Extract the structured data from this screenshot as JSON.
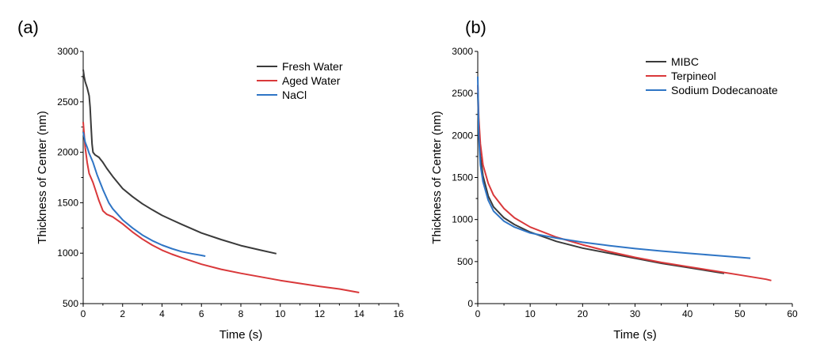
{
  "chart_data": [
    {
      "type": "line",
      "panel_label": "(a)",
      "xlabel": "Time (s)",
      "ylabel": "Thickness of Center (nm)",
      "xlim": [
        0,
        16
      ],
      "ylim": [
        500,
        3000
      ],
      "xticks": [
        0,
        2,
        4,
        6,
        8,
        10,
        12,
        14,
        16
      ],
      "yticks": [
        500,
        1000,
        1500,
        2000,
        2500,
        3000
      ],
      "grid": false,
      "legend_position": "top-right",
      "series": [
        {
          "name": "Fresh Water",
          "color": "#3a3a3a",
          "points": [
            [
              0,
              2820
            ],
            [
              0.05,
              2750
            ],
            [
              0.1,
              2700
            ],
            [
              0.2,
              2640
            ],
            [
              0.3,
              2560
            ],
            [
              0.35,
              2450
            ],
            [
              0.4,
              2250
            ],
            [
              0.45,
              2080
            ],
            [
              0.5,
              2000
            ],
            [
              0.6,
              1975
            ],
            [
              0.8,
              1950
            ],
            [
              1.0,
              1900
            ],
            [
              1.2,
              1840
            ],
            [
              1.5,
              1760
            ],
            [
              2,
              1640
            ],
            [
              2.5,
              1560
            ],
            [
              3,
              1490
            ],
            [
              3.5,
              1430
            ],
            [
              4,
              1375
            ],
            [
              4.5,
              1330
            ],
            [
              5,
              1285
            ],
            [
              6,
              1200
            ],
            [
              7,
              1135
            ],
            [
              8,
              1075
            ],
            [
              9,
              1030
            ],
            [
              9.8,
              995
            ]
          ]
        },
        {
          "name": "Aged Water",
          "color": "#d9383a",
          "points": [
            [
              0,
              2300
            ],
            [
              0.1,
              2050
            ],
            [
              0.2,
              1900
            ],
            [
              0.3,
              1790
            ],
            [
              0.5,
              1700
            ],
            [
              0.6,
              1640
            ],
            [
              0.8,
              1520
            ],
            [
              1.0,
              1420
            ],
            [
              1.2,
              1385
            ],
            [
              1.5,
              1360
            ],
            [
              2,
              1290
            ],
            [
              2.5,
              1210
            ],
            [
              3,
              1140
            ],
            [
              3.5,
              1080
            ],
            [
              4,
              1030
            ],
            [
              4.5,
              990
            ],
            [
              5,
              955
            ],
            [
              6,
              890
            ],
            [
              7,
              840
            ],
            [
              8,
              800
            ],
            [
              9,
              765
            ],
            [
              10,
              730
            ],
            [
              11,
              700
            ],
            [
              12,
              670
            ],
            [
              13,
              645
            ],
            [
              14,
              610
            ]
          ]
        },
        {
          "name": "NaCl",
          "color": "#2f75c5",
          "points": [
            [
              0,
              2200
            ],
            [
              0.1,
              2100
            ],
            [
              0.2,
              2050
            ],
            [
              0.3,
              1990
            ],
            [
              0.5,
              1900
            ],
            [
              0.7,
              1780
            ],
            [
              1.0,
              1630
            ],
            [
              1.3,
              1500
            ],
            [
              1.5,
              1440
            ],
            [
              2,
              1330
            ],
            [
              2.5,
              1250
            ],
            [
              3,
              1180
            ],
            [
              3.5,
              1125
            ],
            [
              4,
              1080
            ],
            [
              4.5,
              1045
            ],
            [
              5,
              1015
            ],
            [
              5.5,
              995
            ],
            [
              6,
              978
            ],
            [
              6.2,
              970
            ]
          ]
        }
      ]
    },
    {
      "type": "line",
      "panel_label": "(b)",
      "xlabel": "Time (s)",
      "ylabel": "Thickness of Center (nm)",
      "xlim": [
        0,
        60
      ],
      "ylim": [
        0,
        3000
      ],
      "xticks": [
        0,
        10,
        20,
        30,
        40,
        50,
        60
      ],
      "yticks": [
        0,
        500,
        1000,
        1500,
        2000,
        2500,
        3000
      ],
      "grid": false,
      "legend_position": "top-right",
      "series": [
        {
          "name": "MIBC",
          "color": "#3a3a3a",
          "points": [
            [
              0,
              2500
            ],
            [
              0.2,
              2050
            ],
            [
              0.5,
              1750
            ],
            [
              1,
              1520
            ],
            [
              2,
              1280
            ],
            [
              3,
              1150
            ],
            [
              5,
              1020
            ],
            [
              7,
              940
            ],
            [
              10,
              850
            ],
            [
              15,
              740
            ],
            [
              20,
              660
            ],
            [
              25,
              600
            ],
            [
              30,
              540
            ],
            [
              35,
              480
            ],
            [
              40,
              430
            ],
            [
              45,
              380
            ],
            [
              47,
              360
            ]
          ]
        },
        {
          "name": "Terpineol",
          "color": "#d9383a",
          "points": [
            [
              0,
              2600
            ],
            [
              0.2,
              2200
            ],
            [
              0.5,
              1900
            ],
            [
              1,
              1650
            ],
            [
              2,
              1430
            ],
            [
              3,
              1290
            ],
            [
              5,
              1130
            ],
            [
              7,
              1020
            ],
            [
              10,
              910
            ],
            [
              15,
              790
            ],
            [
              20,
              700
            ],
            [
              25,
              620
            ],
            [
              30,
              550
            ],
            [
              35,
              490
            ],
            [
              40,
              440
            ],
            [
              45,
              390
            ],
            [
              50,
              340
            ],
            [
              55,
              290
            ],
            [
              56,
              275
            ]
          ]
        },
        {
          "name": "Sodium Dodecanoate",
          "color": "#2f75c5",
          "points": [
            [
              0,
              2700
            ],
            [
              0.2,
              2000
            ],
            [
              0.5,
              1650
            ],
            [
              1,
              1450
            ],
            [
              2,
              1230
            ],
            [
              3,
              1100
            ],
            [
              5,
              980
            ],
            [
              7,
              910
            ],
            [
              10,
              840
            ],
            [
              15,
              780
            ],
            [
              20,
              730
            ],
            [
              25,
              690
            ],
            [
              30,
              655
            ],
            [
              35,
              625
            ],
            [
              40,
              600
            ],
            [
              45,
              575
            ],
            [
              50,
              550
            ],
            [
              52,
              540
            ]
          ]
        }
      ]
    }
  ]
}
